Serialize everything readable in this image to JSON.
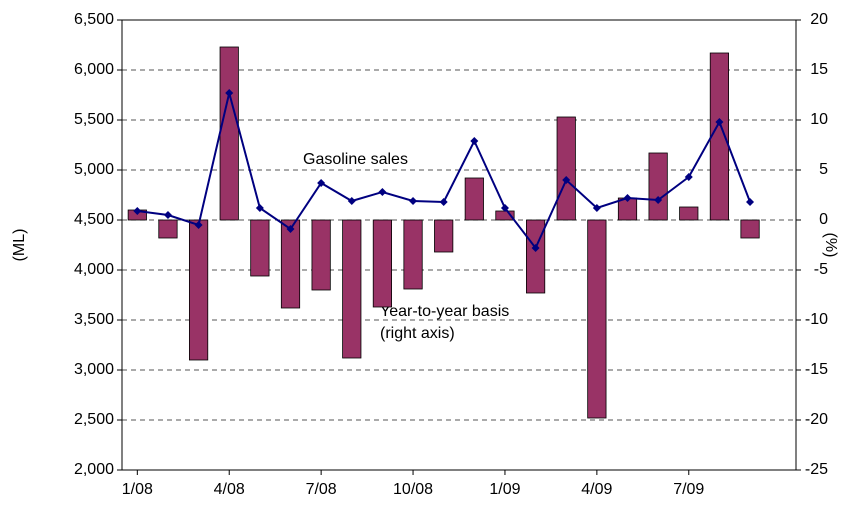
{
  "chart_data": {
    "type": "bar-line",
    "categories": [
      "1/08",
      null,
      null,
      "4/08",
      null,
      null,
      "7/08",
      null,
      null,
      "10/08",
      null,
      null,
      "1/09",
      null,
      null,
      "4/09",
      null,
      null,
      "7/09",
      null,
      null
    ],
    "ylabel": "(ML)",
    "y2label": "(%)",
    "ylim": [
      2000,
      6500
    ],
    "yticks": [
      {
        "value": 2000,
        "label": "2,000"
      },
      {
        "value": 2500,
        "label": "2,500"
      },
      {
        "value": 3000,
        "label": "3,000"
      },
      {
        "value": 3500,
        "label": "3,500"
      },
      {
        "value": 4000,
        "label": "4,000"
      },
      {
        "value": 4500,
        "label": "4,500"
      },
      {
        "value": 5000,
        "label": "5,000"
      },
      {
        "value": 5500,
        "label": "5,500"
      },
      {
        "value": 6000,
        "label": "6,000"
      },
      {
        "value": 6500,
        "label": "6,500"
      }
    ],
    "y2lim": [
      -25,
      20
    ],
    "y2ticks": [
      -25,
      -20,
      -15,
      -10,
      -5,
      0,
      5,
      10,
      15,
      20
    ],
    "grid": true,
    "series": [
      {
        "name": "Year-to-year basis (right axis)",
        "type": "bar",
        "axis": "y2",
        "color": "#993366",
        "values": [
          1.0,
          -1.8,
          -14.0,
          17.3,
          -5.6,
          -8.8,
          -7.0,
          -13.8,
          -8.7,
          -6.9,
          -3.2,
          4.2,
          0.9,
          -7.3,
          10.3,
          -19.8,
          2.2,
          6.7,
          1.3,
          16.7,
          -1.8
        ]
      },
      {
        "name": "Gasoline sales",
        "type": "line",
        "color": "#000080",
        "values": [
          4590,
          4550,
          4450,
          5770,
          4620,
          4410,
          4870,
          4690,
          4780,
          4690,
          4680,
          5290,
          4620,
          4220,
          4900,
          4620,
          4720,
          4700,
          4930,
          5480,
          4680
        ]
      }
    ],
    "annotations": [
      "Gasoline sales",
      "Year-to-year basis",
      "(right axis)"
    ]
  }
}
